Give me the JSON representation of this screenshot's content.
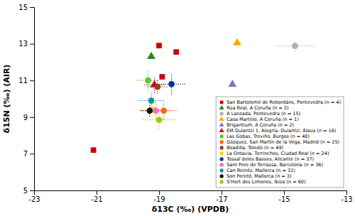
{
  "chart_data": {
    "type": "scatter",
    "xlabel": "δ13C (‰) (VPDB)",
    "ylabel": "δ15N (‰) (AIR)",
    "xlim": [
      -23,
      -13
    ],
    "ylim": [
      5,
      15
    ],
    "xticks": [
      -23,
      -21,
      -19,
      -17,
      -15,
      -13
    ],
    "yticks": [
      5,
      7,
      9,
      11,
      13,
      15
    ],
    "grid": false,
    "legend": "lower right",
    "series": [
      {
        "name": "San Bartolomé de Rebordáns, Pontevedra (n = 4)",
        "color": "#cc0000",
        "marker": "square",
        "x": [
          -19.0,
          -18.45,
          -18.9,
          -21.1
        ],
        "values": [
          12.9,
          12.55,
          11.2,
          7.2
        ]
      },
      {
        "name": "Rúa Real, A Coruña (n = 2)",
        "color": "#228B22",
        "marker": "triangle",
        "x": [
          -19.25
        ],
        "values": [
          12.3
        ]
      },
      {
        "name": "A Lanzada, Pontevedra (n = 15)",
        "color": "#b0b0b0",
        "marker": "circle",
        "x": [
          -14.65
        ],
        "values": [
          12.88
        ],
        "xerr": [
          0.65
        ],
        "yerr": [
          0.28
        ]
      },
      {
        "name": "Casa Martelo, A Coruña (n = 1)",
        "color": "#FFA500",
        "marker": "triangle",
        "x": [
          -16.5
        ],
        "values": [
          13.05
        ]
      },
      {
        "name": "Brigantium, A Coruña (n = 2)",
        "color": "#7777cc",
        "marker": "triangle",
        "x": [
          -16.65
        ],
        "values": [
          10.78
        ]
      },
      {
        "name": "EM Dulantzi 1, Alegría- Dulantzi, Álava (n = 16)",
        "color": "#cc0033",
        "marker": "triangle",
        "x": [
          -19.15
        ],
        "values": [
          10.75
        ],
        "xerr": [
          0.32
        ],
        "yerr": [
          0.45
        ]
      },
      {
        "name": "Las Gobas, Treviño, Burgos (n = 40)",
        "color": "#55CC22",
        "marker": "circle",
        "x": [
          -19.35
        ],
        "values": [
          11.0
        ],
        "xerr": [
          0.38
        ],
        "yerr": [
          0.58
        ]
      },
      {
        "name": "Gózquez, San Martín de la Vega, Madrid (n = 25)",
        "color": "#FF6600",
        "marker": "circle",
        "x": [
          -18.85
        ],
        "values": [
          9.35
        ],
        "xerr": [
          0.42
        ],
        "yerr": [
          0.52
        ]
      },
      {
        "name": "Boadilla, Toledo (n = 49)",
        "color": "#8B4513",
        "marker": "circle",
        "x": [
          -19.05
        ],
        "values": [
          10.65
        ],
        "xerr": [
          0.32
        ],
        "yerr": [
          0.38
        ]
      },
      {
        "name": "La Ontavia, Terrinchos, Ciudad Real (n = 24)",
        "color": "#FFD700",
        "marker": "circle",
        "x": [
          -19.2
        ],
        "values": [
          9.4
        ],
        "xerr": [
          0.42
        ],
        "yerr": [
          0.52
        ]
      },
      {
        "name": "Tossal deles Basses, Alicante (n = 37)",
        "color": "#003399",
        "marker": "circle",
        "x": [
          -18.6
        ],
        "values": [
          10.8
        ],
        "xerr": [
          0.48
        ],
        "yerr": [
          0.58
        ]
      },
      {
        "name": "Sant Pere de Terrassa, Barcelona (n = 36)",
        "color": "#FF69B4",
        "marker": "circle",
        "x": [
          -19.1
        ],
        "values": [
          9.35
        ],
        "xerr": [
          0.52
        ],
        "yerr": [
          0.52
        ]
      },
      {
        "name": "Can Reinés, Mallorca (n = 31)",
        "color": "#009999",
        "marker": "circle",
        "x": [
          -19.25
        ],
        "values": [
          9.9
        ],
        "xerr": [
          0.42
        ],
        "yerr": [
          0.48
        ]
      },
      {
        "name": "Son Peretó, Mallorca (n = 3)",
        "color": "#111111",
        "marker": "circle",
        "x": [
          -19.3
        ],
        "values": [
          9.35
        ],
        "xerr": [
          0.28
        ],
        "yerr": [
          0.32
        ]
      },
      {
        "name": "S'Hort des Limones, Ibiza (n = 60)",
        "color": "#99CC00",
        "marker": "circle",
        "x": [
          -19.0
        ],
        "values": [
          8.85
        ],
        "xerr": [
          0.52
        ],
        "yerr": [
          0.48
        ]
      }
    ]
  }
}
